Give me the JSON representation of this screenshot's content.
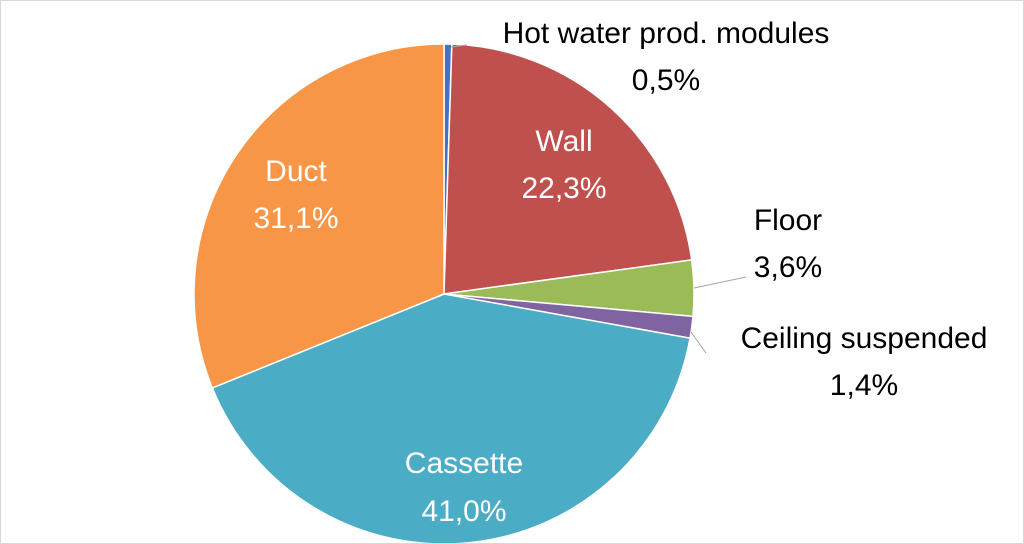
{
  "chart_data": {
    "type": "pie",
    "start_angle_deg": 0,
    "direction": "clockwise",
    "legend": "none",
    "slices": [
      {
        "name": "Hot water prod. modules",
        "value": 0.5,
        "value_label": "0,5%",
        "color": "#4472C4"
      },
      {
        "name": "Wall",
        "value": 22.3,
        "value_label": "22,3%",
        "color": "#C0504D"
      },
      {
        "name": "Floor",
        "value": 3.6,
        "value_label": "3,6%",
        "color": "#9BBB59"
      },
      {
        "name": "Ceiling suspended",
        "value": 1.4,
        "value_label": "1,4%",
        "color": "#8064A2"
      },
      {
        "name": "Cassette",
        "value": 41.0,
        "value_label": "41,0%",
        "color": "#4BACC6"
      },
      {
        "name": "Duct",
        "value": 31.1,
        "value_label": "31,1%",
        "color": "#F79646"
      }
    ],
    "label_colors": {
      "inside": "#ffffff",
      "outside": "#000000"
    }
  }
}
